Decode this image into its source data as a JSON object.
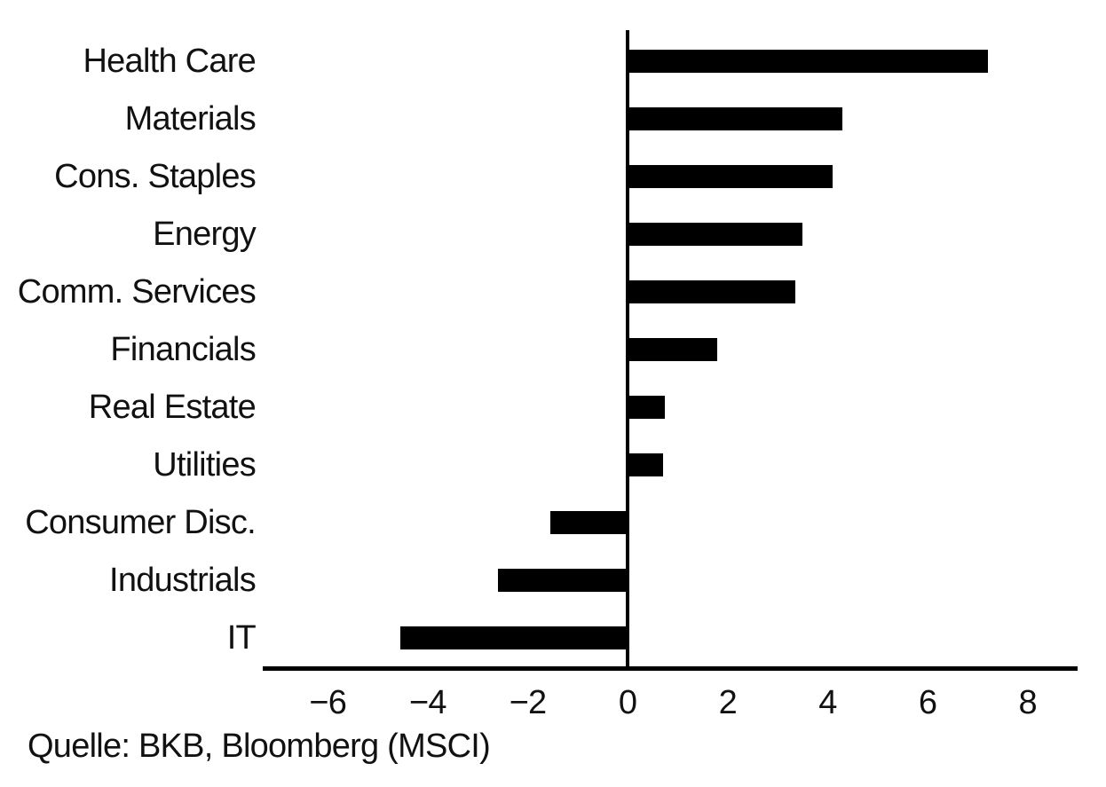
{
  "source_note": "Quelle: BKB, Bloomberg (MSCI)",
  "colors": {
    "background": "#ffffff",
    "bar": "#000000",
    "axis": "#000000",
    "text": "#111111"
  },
  "chart_data": {
    "type": "bar",
    "orientation": "horizontal",
    "title": "",
    "xlabel": "",
    "ylabel": "",
    "categories": [
      "Health Care",
      "Materials",
      "Cons. Staples",
      "Energy",
      "Comm. Services",
      "Financials",
      "Real Estate",
      "Utilities",
      "Consumer Disc.",
      "Industrials",
      "IT"
    ],
    "values": [
      7.2,
      4.3,
      4.1,
      3.5,
      3.35,
      1.8,
      0.75,
      0.7,
      -1.55,
      -2.6,
      -4.55
    ],
    "xticks": [
      -6,
      -4,
      -2,
      0,
      2,
      4,
      6,
      8
    ],
    "xlim": [
      -7.3,
      9.0
    ],
    "grid": false,
    "legend": false
  }
}
